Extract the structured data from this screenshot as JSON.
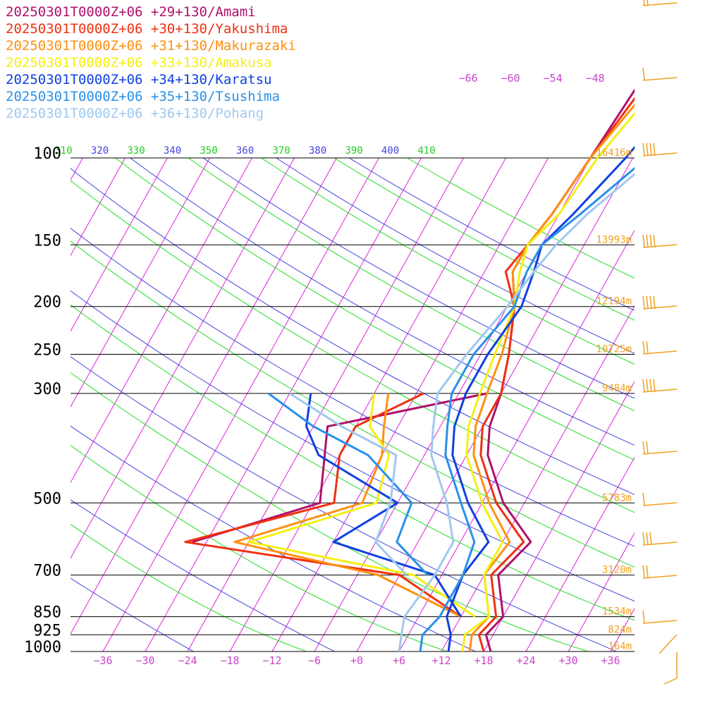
{
  "chart_data": {
    "type": "line",
    "title": "",
    "xlabel": "",
    "ylabel": "",
    "x_axis": {
      "ticks": [
        -36,
        -30,
        -24,
        -18,
        -12,
        -6,
        0,
        6,
        12,
        18,
        24,
        30,
        36
      ],
      "tick_labels": [
        "−36",
        "−30",
        "−24",
        "−18",
        "−12",
        "−6",
        "+0",
        "+6",
        "+12",
        "+18",
        "+24",
        "+30",
        "+36"
      ]
    },
    "pressure_levels": [
      {
        "p": 100,
        "label": "100",
        "height": "16416m"
      },
      {
        "p": 150,
        "label": "150",
        "height": "13993m"
      },
      {
        "p": 200,
        "label": "200",
        "height": "12194m"
      },
      {
        "p": 250,
        "label": "250",
        "height": "10725m"
      },
      {
        "p": 300,
        "label": "300",
        "height": "9484m"
      },
      {
        "p": 500,
        "label": "500",
        "height": "5783m"
      },
      {
        "p": 700,
        "label": "700",
        "height": "3120m"
      },
      {
        "p": 850,
        "label": "850",
        "height": "1534m"
      },
      {
        "p": 925,
        "label": "925",
        "height": "824m"
      },
      {
        "p": 1000,
        "label": "1000",
        "height": "164m"
      }
    ],
    "theta_labels": [
      {
        "t": 310,
        "label": "310"
      },
      {
        "t": 320,
        "label": "320"
      },
      {
        "t": 330,
        "label": "330"
      },
      {
        "t": 340,
        "label": "340"
      },
      {
        "t": 350,
        "label": "350"
      },
      {
        "t": 360,
        "label": "360"
      },
      {
        "t": 370,
        "label": "370"
      },
      {
        "t": 380,
        "label": "380"
      },
      {
        "t": 390,
        "label": "390"
      },
      {
        "t": 400,
        "label": "400"
      },
      {
        "t": 410,
        "label": "410"
      }
    ],
    "mixing_labels": [
      "−66",
      "−60",
      "−54",
      "−48"
    ],
    "series": [
      {
        "name": "20250301T0000Z+06 +29+130/Amami",
        "color": "#b0106a",
        "temp": [
          [
            1000,
            19
          ],
          [
            925,
            17
          ],
          [
            850,
            18
          ],
          [
            700,
            14
          ],
          [
            600,
            16
          ],
          [
            500,
            9
          ],
          [
            400,
            3
          ],
          [
            350,
            1
          ],
          [
            300,
            0
          ],
          [
            250,
            -2
          ],
          [
            200,
            -5
          ],
          [
            170,
            -8
          ],
          [
            150,
            -8
          ],
          [
            130,
            -7
          ],
          [
            100,
            -6
          ],
          [
            70,
            -5
          ],
          [
            50,
            5
          ],
          [
            40,
            12
          ]
        ],
        "dew": [
          [
            300,
            -2
          ],
          [
            350,
            -22
          ],
          [
            500,
            -17
          ],
          [
            600,
            -32
          ]
        ]
      },
      {
        "name": "20250301T0000Z+06 +30+130/Yakushima",
        "color": "#f03010",
        "temp": [
          [
            1000,
            18
          ],
          [
            925,
            16
          ],
          [
            850,
            17
          ],
          [
            700,
            13
          ],
          [
            600,
            15
          ],
          [
            500,
            8
          ],
          [
            400,
            2
          ],
          [
            350,
            0
          ],
          [
            300,
            0
          ],
          [
            250,
            -2
          ],
          [
            200,
            -5
          ],
          [
            170,
            -9
          ],
          [
            150,
            -8
          ],
          [
            130,
            -7
          ],
          [
            100,
            -6
          ],
          [
            70,
            -4
          ],
          [
            50,
            6
          ],
          [
            40,
            13
          ]
        ],
        "dew": [
          [
            300,
            -11
          ],
          [
            350,
            -18
          ],
          [
            400,
            -18
          ],
          [
            500,
            -15
          ],
          [
            600,
            -33
          ],
          [
            700,
            0
          ],
          [
            850,
            12
          ]
        ]
      },
      {
        "name": "20250301T0000Z+06 +31+130/Makurazaki",
        "color": "#ff9010",
        "temp": [
          [
            1000,
            16
          ],
          [
            925,
            15
          ],
          [
            850,
            16
          ],
          [
            700,
            12
          ],
          [
            600,
            13
          ],
          [
            500,
            7
          ],
          [
            400,
            1
          ],
          [
            350,
            -1
          ],
          [
            300,
            -2
          ],
          [
            250,
            -3
          ],
          [
            200,
            -5
          ],
          [
            170,
            -8
          ],
          [
            150,
            -8
          ],
          [
            130,
            -7
          ],
          [
            100,
            -6
          ],
          [
            70,
            -3
          ],
          [
            50,
            7
          ],
          [
            40,
            14
          ]
        ],
        "dew": [
          [
            300,
            -16
          ],
          [
            350,
            -14
          ],
          [
            400,
            -12
          ],
          [
            500,
            -11
          ],
          [
            600,
            -26
          ],
          [
            700,
            -3
          ],
          [
            850,
            12
          ]
        ]
      },
      {
        "name": "20250301T0000Z+06 +33+130/Amakusa",
        "color": "#f5f010",
        "temp": [
          [
            1000,
            15
          ],
          [
            925,
            14
          ],
          [
            850,
            16
          ],
          [
            700,
            12
          ],
          [
            600,
            12
          ],
          [
            500,
            6
          ],
          [
            400,
            0
          ],
          [
            350,
            -2
          ],
          [
            300,
            -3
          ],
          [
            250,
            -4
          ],
          [
            200,
            -5
          ],
          [
            170,
            -7
          ],
          [
            150,
            -8
          ],
          [
            130,
            -6
          ],
          [
            100,
            -5
          ],
          [
            70,
            -2
          ],
          [
            50,
            8
          ],
          [
            40,
            15
          ]
        ],
        "dew": [
          [
            300,
            -18
          ],
          [
            350,
            -16
          ],
          [
            400,
            -11
          ],
          [
            500,
            -9
          ],
          [
            600,
            -24
          ],
          [
            700,
            2
          ],
          [
            850,
            14
          ]
        ]
      },
      {
        "name": "20250301T0000Z+06 +34+130/Karatsu",
        "color": "#1040e0",
        "temp": [
          [
            1000,
            13
          ],
          [
            925,
            12
          ],
          [
            850,
            10
          ],
          [
            700,
            9
          ],
          [
            600,
            10
          ],
          [
            500,
            4
          ],
          [
            400,
            -2
          ],
          [
            350,
            -4
          ],
          [
            300,
            -5
          ],
          [
            250,
            -5
          ],
          [
            200,
            -4
          ],
          [
            170,
            -5
          ],
          [
            150,
            -6
          ],
          [
            130,
            -4
          ],
          [
            100,
            -1
          ],
          [
            70,
            2
          ],
          [
            50,
            10
          ],
          [
            40,
            16
          ]
        ],
        "dew": [
          [
            300,
            -27
          ],
          [
            350,
            -25
          ],
          [
            400,
            -21
          ],
          [
            500,
            -6
          ],
          [
            600,
            -12
          ],
          [
            700,
            5
          ],
          [
            850,
            12
          ]
        ]
      },
      {
        "name": "20250301T0000Z+06 +35+130/Tsushima",
        "color": "#2890e8",
        "temp": [
          [
            1000,
            9
          ],
          [
            925,
            8
          ],
          [
            850,
            9
          ],
          [
            700,
            9
          ],
          [
            600,
            8
          ],
          [
            500,
            3
          ],
          [
            400,
            -3
          ],
          [
            350,
            -5
          ],
          [
            300,
            -7
          ],
          [
            250,
            -7
          ],
          [
            200,
            -5
          ],
          [
            170,
            -6
          ],
          [
            150,
            -6
          ],
          [
            130,
            -3
          ],
          [
            100,
            2
          ],
          [
            70,
            4
          ],
          [
            50,
            12
          ],
          [
            40,
            17
          ]
        ],
        "dew": [
          [
            300,
            -33
          ],
          [
            350,
            -24
          ],
          [
            400,
            -14
          ],
          [
            500,
            -4
          ],
          [
            600,
            -3
          ],
          [
            700,
            4
          ]
        ]
      },
      {
        "name": "20250301T0000Z+06 +36+130/Pohang",
        "color": "#a0c8f0",
        "temp": [
          [
            1000,
            6
          ],
          [
            925,
            5
          ],
          [
            850,
            4
          ],
          [
            700,
            5
          ],
          [
            600,
            5
          ],
          [
            500,
            1
          ],
          [
            400,
            -5
          ],
          [
            350,
            -7
          ],
          [
            300,
            -9
          ],
          [
            250,
            -8
          ],
          [
            200,
            -6
          ],
          [
            170,
            -5
          ],
          [
            150,
            -4
          ],
          [
            130,
            -2
          ],
          [
            100,
            3
          ],
          [
            70,
            6
          ],
          [
            50,
            13
          ],
          [
            40,
            18
          ]
        ],
        "dew": [
          [
            300,
            -30
          ],
          [
            350,
            -20
          ],
          [
            400,
            -10
          ],
          [
            500,
            -7
          ],
          [
            600,
            -6
          ],
          [
            700,
            1
          ]
        ]
      }
    ],
    "grid": true,
    "legend_position": "top-left",
    "colors": {
      "isotherm": "#dd22dd",
      "dry_adiabat": "#4444dd",
      "moist_adiabat": "#22dd22",
      "pressure_line": "#000000",
      "height_label": "#f0a020",
      "wind_barb": "#f0a020"
    }
  }
}
